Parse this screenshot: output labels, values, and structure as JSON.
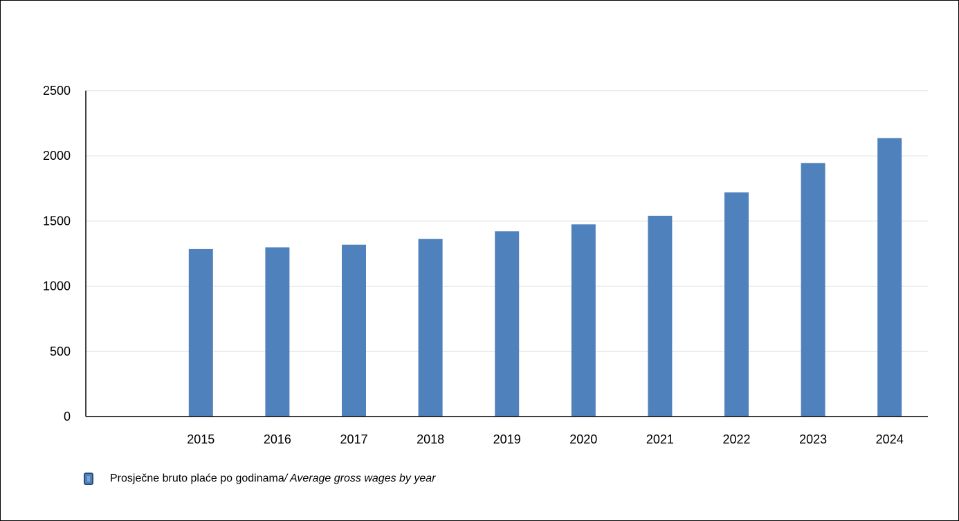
{
  "chart_data": {
    "type": "bar",
    "categories": [
      "2015",
      "2016",
      "2017",
      "2018",
      "2019",
      "2020",
      "2021",
      "2022",
      "2023",
      "2024"
    ],
    "series": [
      {
        "name": "Prosječne bruto plaće po godinama/ Average gross wages by year",
        "values": [
          1285,
          1298,
          1318,
          1363,
          1421,
          1474,
          1540,
          1719,
          1944,
          2136
        ],
        "color": "#4f81bd"
      }
    ],
    "y_ticks": [
      "0",
      "500",
      "1000",
      "1500",
      "2000",
      "2500"
    ],
    "ylim": [
      0,
      2500
    ],
    "grid": true,
    "legend_position": "bottom-left",
    "title": "",
    "xlabel": "",
    "ylabel": ""
  },
  "legend": {
    "label_main": "Prosječne bruto plaće po godinama",
    "label_italic": "/ Average gross wages by year"
  }
}
